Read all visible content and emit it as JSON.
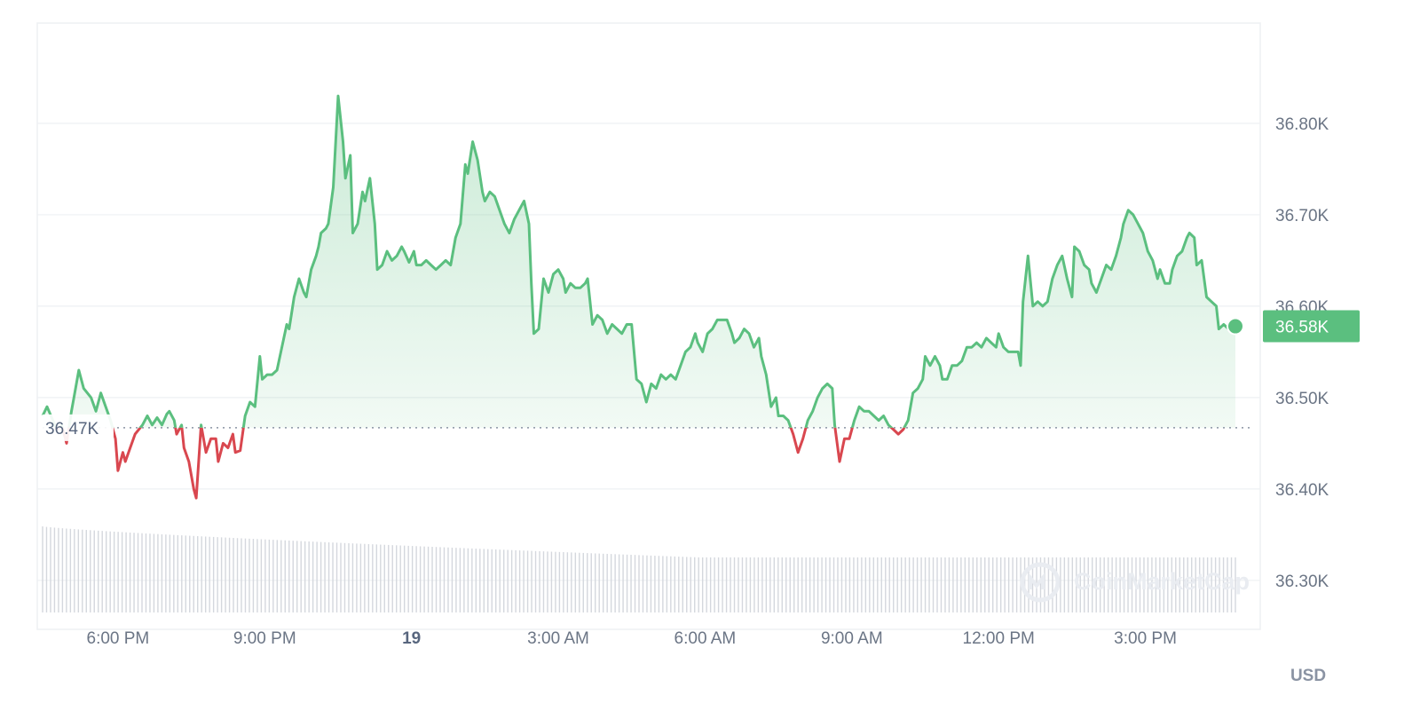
{
  "chart_data": {
    "type": "line",
    "currency_label": "USD",
    "watermark": "CoinMarketCap",
    "colors": {
      "up": "#5bbf7f",
      "down": "#d9474f",
      "grid": "#eef0f3",
      "volume": "#d4d7dd",
      "badge": "#5bbf7f"
    },
    "x_ticks": [
      {
        "t": 6,
        "label": "6:00 PM",
        "bold": false
      },
      {
        "t": 9,
        "label": "9:00 PM",
        "bold": false
      },
      {
        "t": 12,
        "label": "19",
        "bold": true
      },
      {
        "t": 15,
        "label": "3:00 AM",
        "bold": false
      },
      {
        "t": 18,
        "label": "6:00 AM",
        "bold": false
      },
      {
        "t": 21,
        "label": "9:00 AM",
        "bold": false
      },
      {
        "t": 24,
        "label": "12:00 PM",
        "bold": false
      },
      {
        "t": 27,
        "label": "3:00 PM",
        "bold": false
      }
    ],
    "y_ticks": [
      {
        "v": 36300,
        "label": "36.30K"
      },
      {
        "v": 36400,
        "label": "36.40K"
      },
      {
        "v": 36500,
        "label": "36.50K"
      },
      {
        "v": 36600,
        "label": "36.60K"
      },
      {
        "v": 36700,
        "label": "36.70K"
      },
      {
        "v": 36800,
        "label": "36.80K"
      }
    ],
    "x_range": [
      4.46,
      28.84
    ],
    "y_range": [
      36260,
      36900
    ],
    "reference": {
      "value": 36467,
      "label": "36.47K"
    },
    "current": {
      "value": 36578,
      "label": "36.58K"
    },
    "series": [
      {
        "values": [
          [
            4.46,
            36480
          ],
          [
            4.55,
            36490
          ],
          [
            4.75,
            36465
          ],
          [
            4.85,
            36470
          ],
          [
            4.95,
            36450
          ],
          [
            5.05,
            36485
          ],
          [
            5.1,
            36500
          ],
          [
            5.2,
            36530
          ],
          [
            5.3,
            36510
          ],
          [
            5.45,
            36500
          ],
          [
            5.55,
            36485
          ],
          [
            5.65,
            36505
          ],
          [
            5.75,
            36490
          ],
          [
            5.85,
            36475
          ],
          [
            5.95,
            36455
          ],
          [
            6.0,
            36420
          ],
          [
            6.1,
            36440
          ],
          [
            6.15,
            36430
          ],
          [
            6.25,
            36445
          ],
          [
            6.35,
            36460
          ],
          [
            6.5,
            36470
          ],
          [
            6.6,
            36480
          ],
          [
            6.7,
            36470
          ],
          [
            6.8,
            36478
          ],
          [
            6.9,
            36470
          ],
          [
            7.0,
            36482
          ],
          [
            7.05,
            36485
          ],
          [
            7.15,
            36475
          ],
          [
            7.2,
            36460
          ],
          [
            7.3,
            36470
          ],
          [
            7.35,
            36445
          ],
          [
            7.45,
            36430
          ],
          [
            7.55,
            36400
          ],
          [
            7.6,
            36390
          ],
          [
            7.7,
            36470
          ],
          [
            7.8,
            36440
          ],
          [
            7.9,
            36455
          ],
          [
            8.0,
            36455
          ],
          [
            8.05,
            36430
          ],
          [
            8.15,
            36450
          ],
          [
            8.25,
            36445
          ],
          [
            8.35,
            36460
          ],
          [
            8.4,
            36440
          ],
          [
            8.5,
            36442
          ],
          [
            8.6,
            36480
          ],
          [
            8.7,
            36495
          ],
          [
            8.8,
            36490
          ],
          [
            8.9,
            36545
          ],
          [
            8.95,
            36520
          ],
          [
            9.05,
            36525
          ],
          [
            9.15,
            36525
          ],
          [
            9.25,
            36530
          ],
          [
            9.35,
            36555
          ],
          [
            9.45,
            36580
          ],
          [
            9.5,
            36575
          ],
          [
            9.6,
            36610
          ],
          [
            9.7,
            36630
          ],
          [
            9.8,
            36615
          ],
          [
            9.85,
            36610
          ],
          [
            9.95,
            36640
          ],
          [
            10.05,
            36655
          ],
          [
            10.1,
            36665
          ],
          [
            10.15,
            36680
          ],
          [
            10.25,
            36685
          ],
          [
            10.3,
            36690
          ],
          [
            10.4,
            36730
          ],
          [
            10.5,
            36830
          ],
          [
            10.6,
            36780
          ],
          [
            10.65,
            36740
          ],
          [
            10.75,
            36765
          ],
          [
            10.8,
            36680
          ],
          [
            10.9,
            36690
          ],
          [
            11.0,
            36725
          ],
          [
            11.05,
            36715
          ],
          [
            11.15,
            36740
          ],
          [
            11.25,
            36690
          ],
          [
            11.3,
            36640
          ],
          [
            11.4,
            36645
          ],
          [
            11.5,
            36660
          ],
          [
            11.6,
            36650
          ],
          [
            11.7,
            36655
          ],
          [
            11.8,
            36665
          ],
          [
            11.85,
            36660
          ],
          [
            11.95,
            36648
          ],
          [
            12.05,
            36660
          ],
          [
            12.1,
            36645
          ],
          [
            12.2,
            36645
          ],
          [
            12.3,
            36650
          ],
          [
            12.4,
            36645
          ],
          [
            12.5,
            36640
          ],
          [
            12.6,
            36645
          ],
          [
            12.7,
            36650
          ],
          [
            12.8,
            36645
          ],
          [
            12.9,
            36675
          ],
          [
            13.0,
            36690
          ],
          [
            13.1,
            36755
          ],
          [
            13.15,
            36745
          ],
          [
            13.25,
            36780
          ],
          [
            13.35,
            36760
          ],
          [
            13.45,
            36725
          ],
          [
            13.5,
            36715
          ],
          [
            13.6,
            36725
          ],
          [
            13.7,
            36720
          ],
          [
            13.8,
            36705
          ],
          [
            13.9,
            36690
          ],
          [
            14.0,
            36680
          ],
          [
            14.1,
            36695
          ],
          [
            14.2,
            36705
          ],
          [
            14.3,
            36715
          ],
          [
            14.4,
            36690
          ],
          [
            14.45,
            36625
          ],
          [
            14.5,
            36570
          ],
          [
            14.6,
            36575
          ],
          [
            14.7,
            36630
          ],
          [
            14.8,
            36615
          ],
          [
            14.9,
            36635
          ],
          [
            15.0,
            36640
          ],
          [
            15.1,
            36630
          ],
          [
            15.15,
            36615
          ],
          [
            15.25,
            36625
          ],
          [
            15.35,
            36620
          ],
          [
            15.45,
            36620
          ],
          [
            15.55,
            36625
          ],
          [
            15.6,
            36630
          ],
          [
            15.7,
            36580
          ],
          [
            15.8,
            36590
          ],
          [
            15.9,
            36585
          ],
          [
            16.0,
            36570
          ],
          [
            16.1,
            36580
          ],
          [
            16.2,
            36575
          ],
          [
            16.3,
            36570
          ],
          [
            16.4,
            36580
          ],
          [
            16.5,
            36580
          ],
          [
            16.6,
            36520
          ],
          [
            16.7,
            36515
          ],
          [
            16.8,
            36495
          ],
          [
            16.9,
            36515
          ],
          [
            17.0,
            36510
          ],
          [
            17.1,
            36525
          ],
          [
            17.2,
            36520
          ],
          [
            17.3,
            36525
          ],
          [
            17.4,
            36520
          ],
          [
            17.5,
            36535
          ],
          [
            17.6,
            36550
          ],
          [
            17.7,
            36555
          ],
          [
            17.8,
            36570
          ],
          [
            17.85,
            36560
          ],
          [
            17.95,
            36550
          ],
          [
            18.05,
            36570
          ],
          [
            18.15,
            36575
          ],
          [
            18.25,
            36585
          ],
          [
            18.35,
            36585
          ],
          [
            18.45,
            36585
          ],
          [
            18.55,
            36570
          ],
          [
            18.6,
            36560
          ],
          [
            18.7,
            36565
          ],
          [
            18.8,
            36575
          ],
          [
            18.9,
            36570
          ],
          [
            19.0,
            36555
          ],
          [
            19.1,
            36565
          ],
          [
            19.15,
            36545
          ],
          [
            19.25,
            36525
          ],
          [
            19.35,
            36490
          ],
          [
            19.45,
            36500
          ],
          [
            19.5,
            36480
          ],
          [
            19.6,
            36480
          ],
          [
            19.7,
            36475
          ],
          [
            19.8,
            36460
          ],
          [
            19.9,
            36440
          ],
          [
            20.0,
            36455
          ],
          [
            20.1,
            36475
          ],
          [
            20.2,
            36485
          ],
          [
            20.3,
            36500
          ],
          [
            20.4,
            36510
          ],
          [
            20.5,
            36515
          ],
          [
            20.6,
            36510
          ],
          [
            20.65,
            36470
          ],
          [
            20.75,
            36430
          ],
          [
            20.85,
            36455
          ],
          [
            20.95,
            36455
          ],
          [
            21.05,
            36475
          ],
          [
            21.15,
            36490
          ],
          [
            21.25,
            36485
          ],
          [
            21.35,
            36485
          ],
          [
            21.45,
            36480
          ],
          [
            21.55,
            36475
          ],
          [
            21.65,
            36480
          ],
          [
            21.75,
            36470
          ],
          [
            21.85,
            36465
          ],
          [
            21.95,
            36460
          ],
          [
            22.05,
            36465
          ],
          [
            22.15,
            36475
          ],
          [
            22.25,
            36505
          ],
          [
            22.35,
            36510
          ],
          [
            22.45,
            36520
          ],
          [
            22.5,
            36545
          ],
          [
            22.6,
            36535
          ],
          [
            22.7,
            36545
          ],
          [
            22.8,
            36535
          ],
          [
            22.85,
            36520
          ],
          [
            22.95,
            36520
          ],
          [
            23.05,
            36535
          ],
          [
            23.15,
            36535
          ],
          [
            23.25,
            36540
          ],
          [
            23.35,
            36555
          ],
          [
            23.45,
            36555
          ],
          [
            23.55,
            36560
          ],
          [
            23.65,
            36555
          ],
          [
            23.75,
            36565
          ],
          [
            23.85,
            36560
          ],
          [
            23.95,
            36555
          ],
          [
            24.0,
            36570
          ],
          [
            24.1,
            36555
          ],
          [
            24.2,
            36550
          ],
          [
            24.3,
            36550
          ],
          [
            24.4,
            36550
          ],
          [
            24.45,
            36535
          ],
          [
            24.5,
            36605
          ],
          [
            24.6,
            36655
          ],
          [
            24.7,
            36600
          ],
          [
            24.8,
            36605
          ],
          [
            24.9,
            36600
          ],
          [
            25.0,
            36605
          ],
          [
            25.1,
            36630
          ],
          [
            25.2,
            36645
          ],
          [
            25.3,
            36655
          ],
          [
            25.4,
            36630
          ],
          [
            25.5,
            36610
          ],
          [
            25.55,
            36665
          ],
          [
            25.65,
            36660
          ],
          [
            25.75,
            36645
          ],
          [
            25.85,
            36640
          ],
          [
            25.9,
            36625
          ],
          [
            26.0,
            36615
          ],
          [
            26.1,
            36630
          ],
          [
            26.2,
            36645
          ],
          [
            26.3,
            36640
          ],
          [
            26.4,
            36655
          ],
          [
            26.5,
            36675
          ],
          [
            26.55,
            36690
          ],
          [
            26.65,
            36705
          ],
          [
            26.75,
            36700
          ],
          [
            26.85,
            36690
          ],
          [
            26.95,
            36680
          ],
          [
            27.05,
            36660
          ],
          [
            27.15,
            36650
          ],
          [
            27.25,
            36630
          ],
          [
            27.3,
            36640
          ],
          [
            27.4,
            36625
          ],
          [
            27.5,
            36625
          ],
          [
            27.55,
            36640
          ],
          [
            27.65,
            36655
          ],
          [
            27.75,
            36660
          ],
          [
            27.85,
            36675
          ],
          [
            27.9,
            36680
          ],
          [
            28.0,
            36675
          ],
          [
            28.05,
            36645
          ],
          [
            28.15,
            36650
          ],
          [
            28.25,
            36610
          ],
          [
            28.35,
            36605
          ],
          [
            28.45,
            36600
          ],
          [
            28.5,
            36575
          ],
          [
            28.6,
            36580
          ],
          [
            28.7,
            36575
          ],
          [
            28.84,
            36578
          ]
        ]
      }
    ],
    "volume": {
      "from": 4.46,
      "to": 28.84,
      "start": 1.0,
      "end": 0.64
    }
  }
}
